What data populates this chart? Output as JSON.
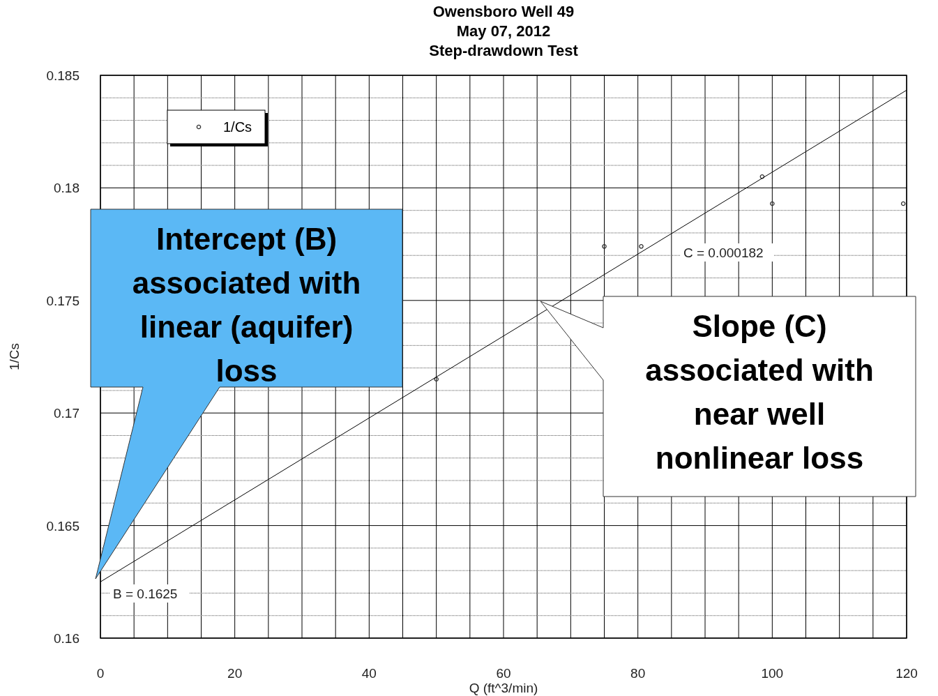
{
  "chart_data": {
    "type": "scatter",
    "title": "Owensboro Well 49\nMay 07, 2012\nStep-drawdown Test",
    "xlabel": "Q (ft^3/min)",
    "ylabel": "1/Cs",
    "xlim": [
      0,
      120
    ],
    "ylim": [
      0.16,
      0.185
    ],
    "xticks": [
      0,
      20,
      40,
      60,
      80,
      100,
      120
    ],
    "yticks": [
      0.16,
      0.165,
      0.17,
      0.175,
      0.18,
      0.185
    ],
    "grid": true,
    "legend": "top left",
    "series": [
      {
        "name": "1/Cs",
        "marker": "circle",
        "color": "#333333",
        "x": [
          50,
          75,
          80.5,
          98.5,
          100,
          119.5
        ],
        "values": [
          0.1715,
          0.1774,
          0.1774,
          0.1805,
          0.1793,
          0.1793
        ]
      },
      {
        "type": "line",
        "marker": "none",
        "color": "#000000",
        "x": [
          0,
          120
        ],
        "values": [
          0.1625,
          0.18434
        ]
      }
    ],
    "annotations": [
      "C = 0.000182",
      "B = 0.1625",
      "Intercept (B) associated with linear (aquifer) loss",
      "Slope (C) associated with near well nonlinear loss"
    ]
  }
}
